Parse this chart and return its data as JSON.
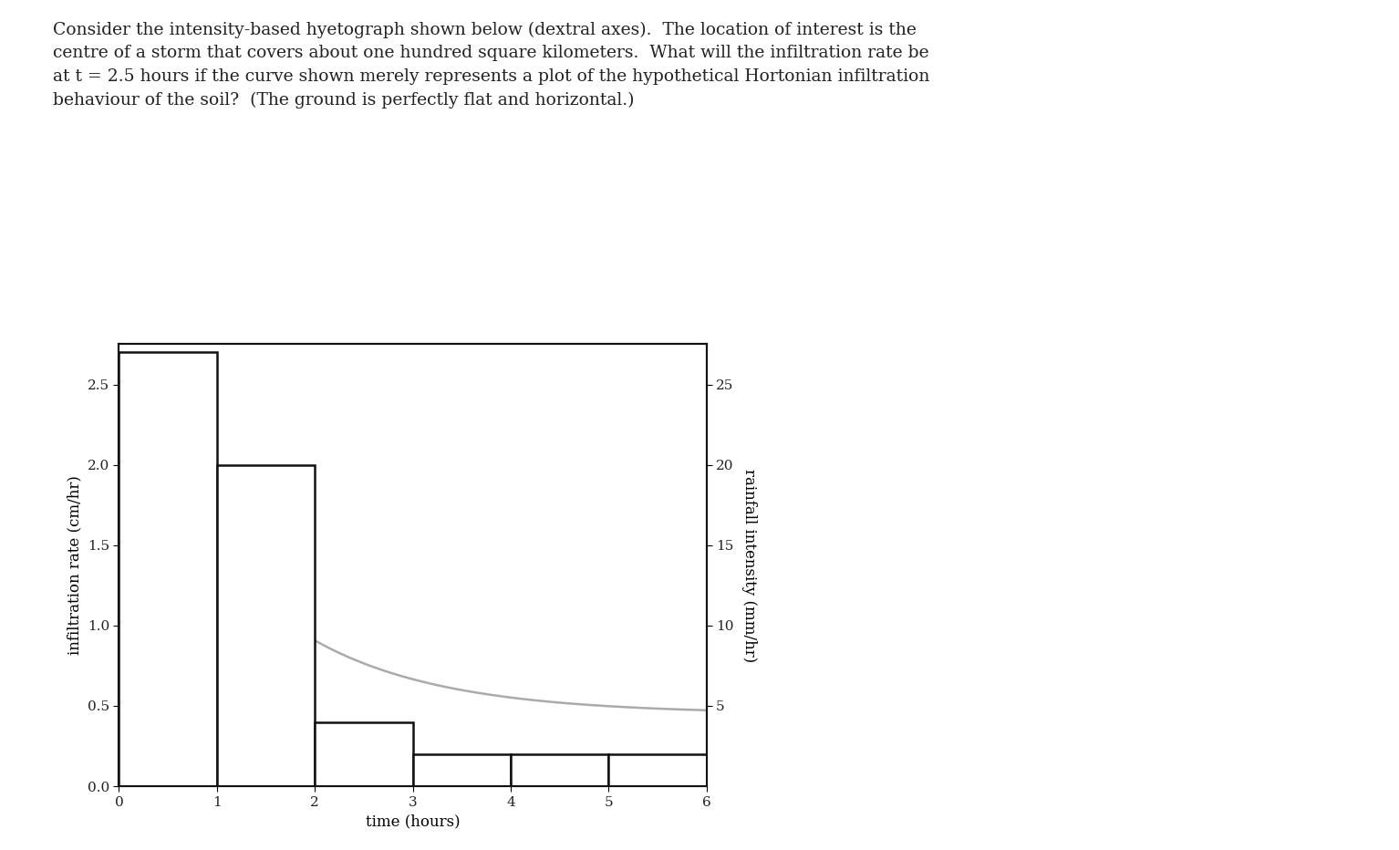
{
  "title_lines": [
    "Consider the intensity-based hyetograph shown below (dextral axes).  The location of interest is the",
    "centre of a storm that covers about one hundred square kilometers.  What will the infiltration rate be",
    "at t = 2.5 hours if the curve shown merely represents a plot of the hypothetical Hortonian infiltration",
    "behaviour of the soil?  (The ground is perfectly flat and horizontal.)"
  ],
  "background_color": "#ffffff",
  "text_color": "#222222",
  "left_ylabel": "infiltration rate (cm/hr)",
  "right_ylabel": "rainfall intensity (mm/hr)",
  "xlabel": "time (hours)",
  "xlim": [
    0,
    6
  ],
  "left_ylim": [
    0,
    2.75
  ],
  "right_ylim": [
    0,
    27.5
  ],
  "left_yticks": [
    0,
    0.5,
    1.0,
    1.5,
    2.0,
    2.5
  ],
  "right_yticks": [
    5,
    10,
    15,
    20,
    25
  ],
  "xticks": [
    0,
    1,
    2,
    3,
    4,
    5,
    6
  ],
  "bar_edges": [
    0,
    1,
    2,
    3,
    4,
    5,
    6
  ],
  "bar_heights_mm": [
    27,
    20,
    4,
    2,
    2,
    2
  ],
  "curve_color": "#aaaaaa",
  "bar_color": "#ffffff",
  "bar_edge_color": "#111111",
  "horton_f0": 2.5,
  "horton_fc": 0.45,
  "horton_k": 0.75,
  "title_fontsize": 13.5,
  "axis_fontsize": 12,
  "tick_fontsize": 11
}
